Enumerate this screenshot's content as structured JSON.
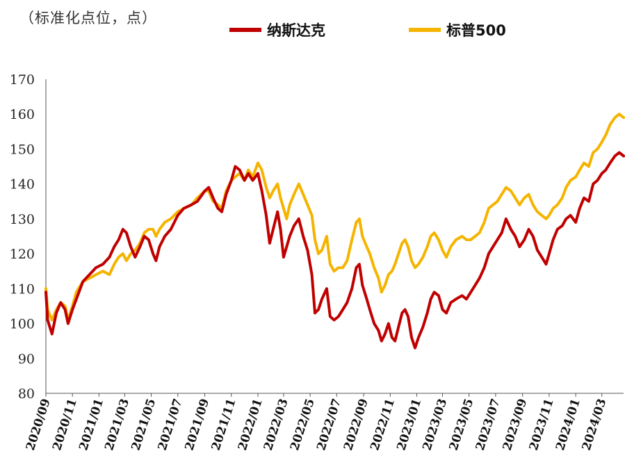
{
  "chart_data": {
    "type": "line",
    "unit_label": "（标准化点位，点）",
    "ylim": [
      80,
      170
    ],
    "yticks": [
      80,
      90,
      100,
      110,
      120,
      130,
      140,
      150,
      160,
      170
    ],
    "xlim": [
      "2020-09-01",
      "2024-04-20"
    ],
    "xticks": [
      "2020/09",
      "2020/11",
      "2021/01",
      "2021/03",
      "2021/05",
      "2021/07",
      "2021/09",
      "2021/11",
      "2022/01",
      "2022/03",
      "2022/05",
      "2022/07",
      "2022/09",
      "2022/11",
      "2023/01",
      "2023/03",
      "2023/05",
      "2023/07",
      "2023/09",
      "2023/11",
      "2024/01",
      "2024/03"
    ],
    "legend_position": "top",
    "series": [
      {
        "name": "纳斯达克",
        "color": "#C00000",
        "points": [
          [
            "2020-09-01",
            109
          ],
          [
            "2020-09-05",
            101
          ],
          [
            "2020-09-15",
            97
          ],
          [
            "2020-09-25",
            103
          ],
          [
            "2020-10-05",
            106
          ],
          [
            "2020-10-15",
            104
          ],
          [
            "2020-10-22",
            100
          ],
          [
            "2020-11-01",
            104
          ],
          [
            "2020-11-10",
            107
          ],
          [
            "2020-11-25",
            112
          ],
          [
            "2020-12-10",
            114
          ],
          [
            "2020-12-25",
            116
          ],
          [
            "2021-01-10",
            117
          ],
          [
            "2021-01-25",
            119
          ],
          [
            "2021-02-05",
            122
          ],
          [
            "2021-02-15",
            124
          ],
          [
            "2021-02-25",
            127
          ],
          [
            "2021-03-05",
            126
          ],
          [
            "2021-03-15",
            122
          ],
          [
            "2021-03-25",
            119
          ],
          [
            "2021-04-05",
            122
          ],
          [
            "2021-04-15",
            125
          ],
          [
            "2021-04-25",
            124
          ],
          [
            "2021-05-05",
            120
          ],
          [
            "2021-05-12",
            118
          ],
          [
            "2021-05-20",
            122
          ],
          [
            "2021-06-01",
            125
          ],
          [
            "2021-06-15",
            127
          ],
          [
            "2021-07-01",
            131
          ],
          [
            "2021-07-15",
            133
          ],
          [
            "2021-08-01",
            134
          ],
          [
            "2021-08-15",
            135
          ],
          [
            "2021-09-01",
            138
          ],
          [
            "2021-09-10",
            139
          ],
          [
            "2021-09-20",
            136
          ],
          [
            "2021-10-01",
            133
          ],
          [
            "2021-10-10",
            132
          ],
          [
            "2021-10-20",
            137
          ],
          [
            "2021-11-01",
            141
          ],
          [
            "2021-11-10",
            145
          ],
          [
            "2021-11-20",
            144
          ],
          [
            "2021-12-01",
            141
          ],
          [
            "2021-12-10",
            143
          ],
          [
            "2021-12-20",
            141
          ],
          [
            "2022-01-01",
            143
          ],
          [
            "2022-01-10",
            138
          ],
          [
            "2022-01-20",
            131
          ],
          [
            "2022-01-28",
            123
          ],
          [
            "2022-02-05",
            127
          ],
          [
            "2022-02-15",
            132
          ],
          [
            "2022-02-22",
            127
          ],
          [
            "2022-03-01",
            119
          ],
          [
            "2022-03-08",
            122
          ],
          [
            "2022-03-15",
            125
          ],
          [
            "2022-03-25",
            128
          ],
          [
            "2022-04-05",
            130
          ],
          [
            "2022-04-15",
            125
          ],
          [
            "2022-04-25",
            121
          ],
          [
            "2022-05-05",
            114
          ],
          [
            "2022-05-12",
            103
          ],
          [
            "2022-05-20",
            104
          ],
          [
            "2022-05-28",
            107
          ],
          [
            "2022-06-08",
            110
          ],
          [
            "2022-06-16",
            102
          ],
          [
            "2022-06-25",
            101
          ],
          [
            "2022-07-05",
            102
          ],
          [
            "2022-07-15",
            104
          ],
          [
            "2022-07-25",
            106
          ],
          [
            "2022-08-05",
            110
          ],
          [
            "2022-08-15",
            116
          ],
          [
            "2022-08-22",
            117
          ],
          [
            "2022-08-29",
            111
          ],
          [
            "2022-09-08",
            107
          ],
          [
            "2022-09-15",
            104
          ],
          [
            "2022-09-25",
            100
          ],
          [
            "2022-10-05",
            98
          ],
          [
            "2022-10-12",
            95
          ],
          [
            "2022-10-20",
            97
          ],
          [
            "2022-10-28",
            100
          ],
          [
            "2022-11-05",
            96
          ],
          [
            "2022-11-12",
            95
          ],
          [
            "2022-11-20",
            99
          ],
          [
            "2022-11-28",
            103
          ],
          [
            "2022-12-05",
            104
          ],
          [
            "2022-12-12",
            102
          ],
          [
            "2022-12-20",
            96
          ],
          [
            "2022-12-28",
            93
          ],
          [
            "2023-01-05",
            96
          ],
          [
            "2023-01-15",
            99
          ],
          [
            "2023-01-25",
            103
          ],
          [
            "2023-02-02",
            107
          ],
          [
            "2023-02-10",
            109
          ],
          [
            "2023-02-20",
            108
          ],
          [
            "2023-03-01",
            104
          ],
          [
            "2023-03-10",
            103
          ],
          [
            "2023-03-20",
            106
          ],
          [
            "2023-04-01",
            107
          ],
          [
            "2023-04-15",
            108
          ],
          [
            "2023-04-25",
            107
          ],
          [
            "2023-05-05",
            109
          ],
          [
            "2023-05-15",
            111
          ],
          [
            "2023-05-25",
            113
          ],
          [
            "2023-06-05",
            116
          ],
          [
            "2023-06-15",
            120
          ],
          [
            "2023-06-25",
            122
          ],
          [
            "2023-07-05",
            124
          ],
          [
            "2023-07-15",
            126
          ],
          [
            "2023-07-25",
            130
          ],
          [
            "2023-08-05",
            127
          ],
          [
            "2023-08-15",
            125
          ],
          [
            "2023-08-25",
            122
          ],
          [
            "2023-09-05",
            124
          ],
          [
            "2023-09-15",
            127
          ],
          [
            "2023-09-25",
            125
          ],
          [
            "2023-10-05",
            121
          ],
          [
            "2023-10-15",
            119
          ],
          [
            "2023-10-25",
            117
          ],
          [
            "2023-11-01",
            120
          ],
          [
            "2023-11-10",
            124
          ],
          [
            "2023-11-20",
            127
          ],
          [
            "2023-12-01",
            128
          ],
          [
            "2023-12-10",
            130
          ],
          [
            "2023-12-20",
            131
          ],
          [
            "2024-01-01",
            129
          ],
          [
            "2024-01-10",
            133
          ],
          [
            "2024-01-20",
            136
          ],
          [
            "2024-01-31",
            135
          ],
          [
            "2024-02-10",
            140
          ],
          [
            "2024-02-20",
            141
          ],
          [
            "2024-03-01",
            143
          ],
          [
            "2024-03-10",
            144
          ],
          [
            "2024-03-20",
            146
          ],
          [
            "2024-03-31",
            148
          ],
          [
            "2024-04-10",
            149
          ],
          [
            "2024-04-20",
            148
          ]
        ]
      },
      {
        "name": "标普500",
        "color": "#F5B400",
        "points": [
          [
            "2020-09-01",
            110
          ],
          [
            "2020-09-05",
            104
          ],
          [
            "2020-09-15",
            101
          ],
          [
            "2020-09-25",
            104
          ],
          [
            "2020-10-05",
            106
          ],
          [
            "2020-10-15",
            105
          ],
          [
            "2020-10-22",
            101
          ],
          [
            "2020-11-01",
            105
          ],
          [
            "2020-11-10",
            109
          ],
          [
            "2020-11-25",
            112
          ],
          [
            "2020-12-10",
            113
          ],
          [
            "2020-12-25",
            114
          ],
          [
            "2021-01-10",
            115
          ],
          [
            "2021-01-25",
            114
          ],
          [
            "2021-02-05",
            117
          ],
          [
            "2021-02-15",
            119
          ],
          [
            "2021-02-25",
            120
          ],
          [
            "2021-03-05",
            118
          ],
          [
            "2021-03-15",
            120
          ],
          [
            "2021-03-25",
            121
          ],
          [
            "2021-04-05",
            123
          ],
          [
            "2021-04-15",
            126
          ],
          [
            "2021-04-25",
            127
          ],
          [
            "2021-05-05",
            127
          ],
          [
            "2021-05-12",
            125
          ],
          [
            "2021-05-20",
            127
          ],
          [
            "2021-06-01",
            129
          ],
          [
            "2021-06-15",
            130
          ],
          [
            "2021-07-01",
            132
          ],
          [
            "2021-07-15",
            133
          ],
          [
            "2021-08-01",
            134
          ],
          [
            "2021-08-15",
            136
          ],
          [
            "2021-09-01",
            138
          ],
          [
            "2021-09-10",
            138
          ],
          [
            "2021-09-20",
            135
          ],
          [
            "2021-10-01",
            134
          ],
          [
            "2021-10-10",
            133
          ],
          [
            "2021-10-20",
            138
          ],
          [
            "2021-11-01",
            141
          ],
          [
            "2021-11-10",
            142
          ],
          [
            "2021-11-20",
            143
          ],
          [
            "2021-12-01",
            141
          ],
          [
            "2021-12-10",
            144
          ],
          [
            "2021-12-20",
            142
          ],
          [
            "2022-01-01",
            146
          ],
          [
            "2022-01-10",
            144
          ],
          [
            "2022-01-20",
            139
          ],
          [
            "2022-01-28",
            136
          ],
          [
            "2022-02-05",
            138
          ],
          [
            "2022-02-15",
            140
          ],
          [
            "2022-02-22",
            136
          ],
          [
            "2022-03-01",
            133
          ],
          [
            "2022-03-08",
            130
          ],
          [
            "2022-03-15",
            134
          ],
          [
            "2022-03-25",
            137
          ],
          [
            "2022-04-05",
            140
          ],
          [
            "2022-04-15",
            137
          ],
          [
            "2022-04-25",
            134
          ],
          [
            "2022-05-05",
            131
          ],
          [
            "2022-05-12",
            124
          ],
          [
            "2022-05-20",
            120
          ],
          [
            "2022-05-28",
            121
          ],
          [
            "2022-06-08",
            125
          ],
          [
            "2022-06-16",
            117
          ],
          [
            "2022-06-25",
            115
          ],
          [
            "2022-07-05",
            116
          ],
          [
            "2022-07-15",
            116
          ],
          [
            "2022-07-25",
            118
          ],
          [
            "2022-08-05",
            124
          ],
          [
            "2022-08-15",
            129
          ],
          [
            "2022-08-22",
            130
          ],
          [
            "2022-08-29",
            125
          ],
          [
            "2022-09-08",
            122
          ],
          [
            "2022-09-15",
            120
          ],
          [
            "2022-09-25",
            116
          ],
          [
            "2022-10-05",
            113
          ],
          [
            "2022-10-12",
            109
          ],
          [
            "2022-10-20",
            111
          ],
          [
            "2022-10-28",
            114
          ],
          [
            "2022-11-05",
            115
          ],
          [
            "2022-11-12",
            117
          ],
          [
            "2022-11-20",
            120
          ],
          [
            "2022-11-28",
            123
          ],
          [
            "2022-12-05",
            124
          ],
          [
            "2022-12-12",
            122
          ],
          [
            "2022-12-20",
            118
          ],
          [
            "2022-12-28",
            116
          ],
          [
            "2023-01-05",
            117
          ],
          [
            "2023-01-15",
            119
          ],
          [
            "2023-01-25",
            122
          ],
          [
            "2023-02-02",
            125
          ],
          [
            "2023-02-10",
            126
          ],
          [
            "2023-02-20",
            124
          ],
          [
            "2023-03-01",
            121
          ],
          [
            "2023-03-10",
            119
          ],
          [
            "2023-03-20",
            122
          ],
          [
            "2023-04-01",
            124
          ],
          [
            "2023-04-15",
            125
          ],
          [
            "2023-04-25",
            124
          ],
          [
            "2023-05-05",
            124
          ],
          [
            "2023-05-15",
            125
          ],
          [
            "2023-05-25",
            126
          ],
          [
            "2023-06-05",
            129
          ],
          [
            "2023-06-15",
            133
          ],
          [
            "2023-06-25",
            134
          ],
          [
            "2023-07-05",
            135
          ],
          [
            "2023-07-15",
            137
          ],
          [
            "2023-07-25",
            139
          ],
          [
            "2023-08-05",
            138
          ],
          [
            "2023-08-15",
            136
          ],
          [
            "2023-08-25",
            134
          ],
          [
            "2023-09-05",
            136
          ],
          [
            "2023-09-15",
            137
          ],
          [
            "2023-09-25",
            134
          ],
          [
            "2023-10-05",
            132
          ],
          [
            "2023-10-15",
            131
          ],
          [
            "2023-10-25",
            130
          ],
          [
            "2023-11-01",
            131
          ],
          [
            "2023-11-10",
            133
          ],
          [
            "2023-11-20",
            134
          ],
          [
            "2023-12-01",
            136
          ],
          [
            "2023-12-10",
            139
          ],
          [
            "2023-12-20",
            141
          ],
          [
            "2024-01-01",
            142
          ],
          [
            "2024-01-10",
            144
          ],
          [
            "2024-01-20",
            146
          ],
          [
            "2024-01-31",
            145
          ],
          [
            "2024-02-10",
            149
          ],
          [
            "2024-02-20",
            150
          ],
          [
            "2024-03-01",
            152
          ],
          [
            "2024-03-10",
            154
          ],
          [
            "2024-03-20",
            157
          ],
          [
            "2024-03-31",
            159
          ],
          [
            "2024-04-10",
            160
          ],
          [
            "2024-04-20",
            159
          ]
        ]
      }
    ]
  }
}
